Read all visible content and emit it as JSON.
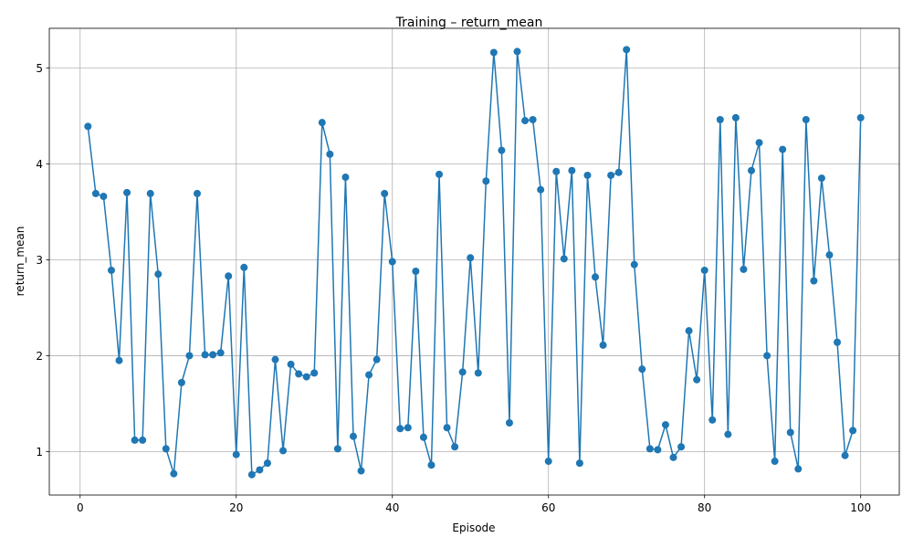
{
  "chart_data": {
    "type": "line",
    "title": "Training – return_mean",
    "xlabel": "Episode",
    "ylabel": "return_mean",
    "xlim": [
      -3.95,
      104.95
    ],
    "ylim": [
      0.548,
      5.412
    ],
    "xticks": [
      0,
      20,
      40,
      60,
      80,
      100
    ],
    "yticks": [
      1,
      2,
      3,
      4,
      5
    ],
    "grid": true,
    "color": "#1f77b4",
    "marker": "circle",
    "series": [
      {
        "x": [
          1,
          2,
          3,
          4,
          5,
          6,
          7,
          8,
          9,
          10,
          11,
          12,
          13,
          14,
          15,
          16,
          17,
          18,
          19,
          20,
          21,
          22,
          23,
          24,
          25,
          26,
          27,
          28,
          29,
          30,
          31,
          32,
          33,
          34,
          35,
          36,
          37,
          38,
          39,
          40,
          41,
          42,
          43,
          44,
          45,
          46,
          47,
          48,
          49,
          50,
          51,
          52,
          53,
          54,
          55,
          56,
          57,
          58,
          59,
          60,
          61,
          62,
          63,
          64,
          65,
          66,
          67,
          68,
          69,
          70,
          71,
          72,
          73,
          74,
          75,
          76,
          77,
          78,
          79,
          80,
          81,
          82,
          83,
          84,
          85,
          86,
          87,
          88,
          89,
          90,
          91,
          92,
          93,
          94,
          95,
          96,
          97,
          98,
          99,
          100
        ],
        "values": [
          4.39,
          3.69,
          3.66,
          2.89,
          1.95,
          3.7,
          1.12,
          1.12,
          3.69,
          2.85,
          1.03,
          0.77,
          1.72,
          2.0,
          3.69,
          2.01,
          2.01,
          2.03,
          2.83,
          0.97,
          2.92,
          0.76,
          0.81,
          0.88,
          1.96,
          1.01,
          1.91,
          1.81,
          1.78,
          1.82,
          4.43,
          4.1,
          1.03,
          3.86,
          1.16,
          0.8,
          1.8,
          1.96,
          3.69,
          2.98,
          1.24,
          1.25,
          2.88,
          1.15,
          0.86,
          3.89,
          1.25,
          1.05,
          1.83,
          3.02,
          1.82,
          3.82,
          5.16,
          4.14,
          1.3,
          5.17,
          4.45,
          4.46,
          3.73,
          0.9,
          3.92,
          3.01,
          3.93,
          0.88,
          3.88,
          2.82,
          2.11,
          3.88,
          3.91,
          5.19,
          2.95,
          1.86,
          1.03,
          1.02,
          1.28,
          0.94,
          1.05,
          2.26,
          1.75,
          2.89,
          1.33,
          4.46,
          1.18,
          4.48,
          2.9,
          3.93,
          4.22,
          2.0,
          0.9,
          4.15,
          1.2,
          0.82,
          4.46,
          2.78,
          3.85,
          3.05,
          2.14,
          0.96,
          1.22,
          4.48
        ]
      }
    ]
  }
}
